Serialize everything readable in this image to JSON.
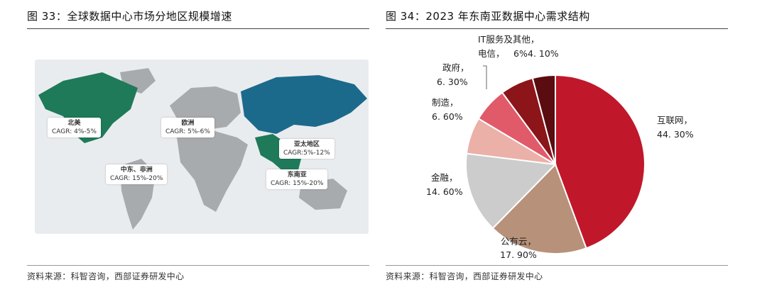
{
  "left_panel": {
    "title": "图 33：全球数据中心市场分地区规模增速",
    "source": "资料来源：科智咨询，西部证券研发中心",
    "regions": [
      {
        "name": "北美",
        "cagr": "CAGR: 4%-5%"
      },
      {
        "name": "欧洲",
        "cagr": "CAGR: 5%-6%"
      },
      {
        "name": "亚太地区",
        "cagr": "CAGR:5%-12%"
      },
      {
        "name": "中东、非洲",
        "cagr": "CAGR: 15%-20%"
      },
      {
        "name": "东南亚",
        "cagr": "CAGR: 15%-20%"
      }
    ],
    "colors": {
      "north_america": "#1f7a5a",
      "asia_pacific": "#1b6a8c",
      "southeast_asia": "#1f7a5a",
      "other_land": "#a7abae",
      "background": "#e9ecee"
    }
  },
  "right_panel": {
    "title": "图 34：2023 年东南亚数据中心需求结构",
    "source": "资料来源：科智咨询，西部证券研发中心"
  },
  "chart_data": {
    "type": "pie",
    "title": "图 34：2023 年东南亚数据中心需求结构",
    "slices": [
      {
        "label": "互联网",
        "value": 44.3,
        "display": "44. 30%",
        "color": "#c0182a"
      },
      {
        "label": "公有云",
        "value": 17.9,
        "display": "17. 90%",
        "color": "#b8917a"
      },
      {
        "label": "金融",
        "value": 14.6,
        "display": "14. 60%",
        "color": "#cccccc"
      },
      {
        "label": "制造",
        "value": 6.6,
        "display": "6. 60%",
        "color": "#ebb0a8"
      },
      {
        "label": "政府",
        "value": 6.3,
        "display": "6. 30%",
        "color": "#e15a6a"
      },
      {
        "label": "电信",
        "value": 6.0,
        "display": "6%",
        "color": "#8b1518"
      },
      {
        "label": "IT服务及其他",
        "value": 4.1,
        "display": "4. 10%",
        "color": "#5a0c10"
      }
    ]
  }
}
